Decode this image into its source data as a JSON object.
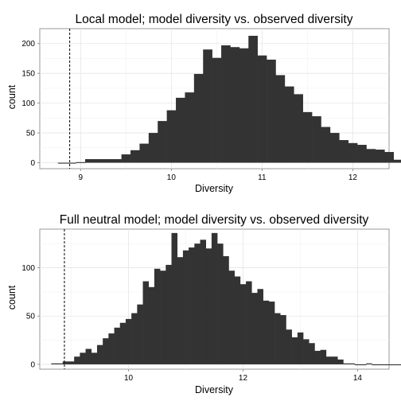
{
  "chart_data": [
    {
      "type": "bar",
      "title": "Local model; model diversity vs. observed diversity",
      "xlabel": "Diversity",
      "ylabel": "count",
      "xlim": [
        8.55,
        12.4
      ],
      "ylim": [
        -10,
        225
      ],
      "x_ticks": [
        9,
        10,
        11,
        12
      ],
      "y_ticks": [
        0,
        50,
        100,
        150,
        200
      ],
      "grid": true,
      "observed_line": 8.88,
      "bin_width": 0.1,
      "bins_start": 8.75,
      "values": [
        0,
        0,
        1,
        6,
        6,
        6,
        6,
        14,
        21,
        32,
        50,
        70,
        88,
        109,
        118,
        149,
        190,
        176,
        197,
        194,
        192,
        213,
        180,
        173,
        147,
        128,
        115,
        85,
        78,
        60,
        50,
        38,
        33,
        30,
        23,
        22,
        18,
        5,
        7,
        1,
        1,
        1,
        1,
        1,
        1
      ]
    },
    {
      "type": "bar",
      "title": "Full neutral model; model diversity vs. observed diversity",
      "xlabel": "Diversity",
      "ylabel": "count",
      "xlim": [
        8.45,
        14.55
      ],
      "ylim": [
        -5,
        140
      ],
      "x_ticks": [
        10,
        12,
        14
      ],
      "y_ticks": [
        0,
        50,
        100
      ],
      "grid": true,
      "observed_line": 8.88,
      "bin_width": 0.1,
      "bins_start": 8.65,
      "values": [
        1,
        1,
        3,
        3,
        8,
        12,
        16,
        12,
        20,
        27,
        32,
        38,
        43,
        47,
        53,
        62,
        86,
        80,
        99,
        97,
        103,
        136,
        111,
        118,
        121,
        125,
        129,
        120,
        136,
        125,
        112,
        97,
        91,
        83,
        86,
        74,
        78,
        66,
        65,
        53,
        51,
        36,
        28,
        33,
        26,
        22,
        14,
        15,
        8,
        8,
        5,
        1,
        1,
        0,
        0,
        1,
        0,
        0,
        0,
        0,
        0,
        0
      ]
    }
  ]
}
